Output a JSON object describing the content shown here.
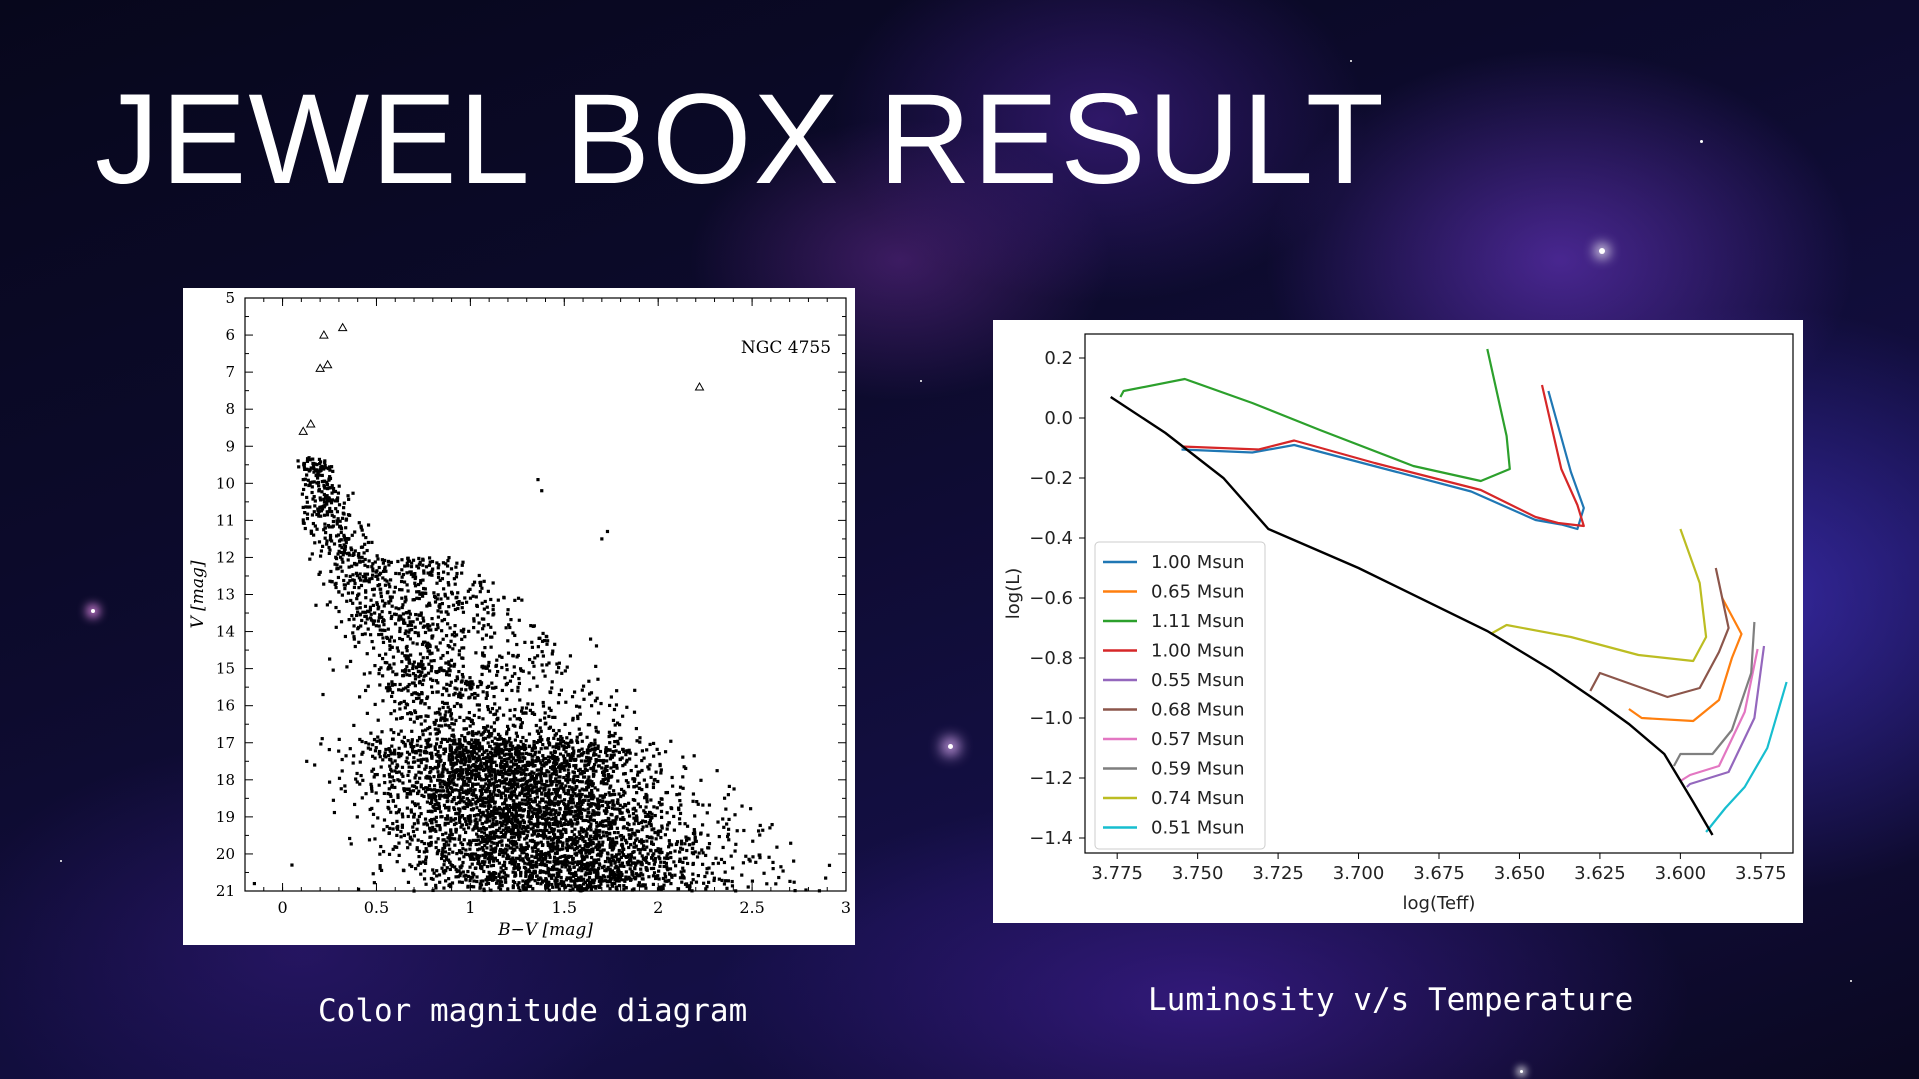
{
  "slide": {
    "title": "JEWEL BOX RESULT",
    "caption_left": "Color magnitude diagram",
    "caption_right": "Luminosity v/s Temperature"
  },
  "colors": {
    "background": "#0d0b2e",
    "title": "#ffffff"
  },
  "chart_data": [
    {
      "type": "scatter",
      "title": "NGC 4755",
      "xlabel": "B−V [mag]",
      "ylabel": "V [mag]",
      "xlim": [
        -0.2,
        3.0
      ],
      "ylim": [
        21,
        5
      ],
      "y_inverted": true,
      "xticks": [
        "0",
        "0.5",
        "1",
        "1.5",
        "2",
        "2.5",
        "3"
      ],
      "yticks": [
        "5",
        "6",
        "7",
        "8",
        "9",
        "10",
        "11",
        "12",
        "13",
        "14",
        "15",
        "16",
        "17",
        "18",
        "19",
        "20",
        "21"
      ],
      "triangles": [
        [
          0.22,
          6.0
        ],
        [
          0.32,
          5.8
        ],
        [
          0.2,
          6.9
        ],
        [
          0.24,
          6.8
        ],
        [
          0.15,
          8.4
        ],
        [
          0.11,
          8.6
        ],
        [
          2.22,
          7.4
        ]
      ],
      "dense_points_note": "",
      "grid": false
    },
    {
      "type": "line",
      "xlabel": "log(Teff)",
      "ylabel": "log(L)",
      "xlim": [
        3.785,
        3.565
      ],
      "ylim": [
        -1.45,
        0.28
      ],
      "xticks": [
        "3.775",
        "3.750",
        "3.725",
        "3.700",
        "3.675",
        "3.650",
        "3.625",
        "3.600",
        "3.575"
      ],
      "yticks": [
        "0.2",
        "0.0",
        "−0.2",
        "−0.4",
        "−0.6",
        "−0.8",
        "−1.0",
        "−1.2",
        "−1.4"
      ],
      "legend_position": "lower-left",
      "grid": false,
      "series": [
        {
          "name": "1.00 Msun",
          "color": "#1f77b4",
          "x": [
            3.755,
            3.733,
            3.72,
            3.697,
            3.665,
            3.645,
            3.637,
            3.632,
            3.63,
            3.634,
            3.641
          ],
          "y": [
            -0.105,
            -0.115,
            -0.09,
            -0.155,
            -0.245,
            -0.34,
            -0.355,
            -0.37,
            -0.3,
            -0.18,
            0.09
          ]
        },
        {
          "name": "0.65 Msun",
          "color": "#ff7f0e",
          "x": [
            3.616,
            3.612,
            3.596,
            3.588,
            3.584,
            3.581,
            3.587
          ],
          "y": [
            -0.97,
            -1.0,
            -1.01,
            -0.94,
            -0.8,
            -0.72,
            -0.6
          ]
        },
        {
          "name": "1.11 Msun",
          "color": "#2ca02c",
          "x": [
            3.774,
            3.773,
            3.754,
            3.733,
            3.712,
            3.683,
            3.662,
            3.653,
            3.654,
            3.66
          ],
          "y": [
            0.07,
            0.09,
            0.13,
            0.05,
            -0.04,
            -0.16,
            -0.21,
            -0.17,
            -0.06,
            0.23
          ]
        },
        {
          "name": "1.00 Msun",
          "color": "#d62728",
          "x": [
            3.755,
            3.731,
            3.72,
            3.695,
            3.662,
            3.645,
            3.638,
            3.63,
            3.632,
            3.637,
            3.643
          ],
          "y": [
            -0.095,
            -0.105,
            -0.075,
            -0.15,
            -0.24,
            -0.33,
            -0.35,
            -0.36,
            -0.29,
            -0.17,
            0.11
          ]
        },
        {
          "name": "0.55 Msun",
          "color": "#9467bd",
          "x": [
            3.598,
            3.597,
            3.585,
            3.577,
            3.574
          ],
          "y": [
            -1.23,
            -1.22,
            -1.18,
            -1.0,
            -0.76
          ]
        },
        {
          "name": "0.68 Msun",
          "color": "#8c564b",
          "x": [
            3.628,
            3.625,
            3.604,
            3.594,
            3.588,
            3.585,
            3.589
          ],
          "y": [
            -0.91,
            -0.85,
            -0.93,
            -0.9,
            -0.78,
            -0.7,
            -0.5
          ]
        },
        {
          "name": "0.57 Msun",
          "color": "#e377c2",
          "x": [
            3.6,
            3.597,
            3.588,
            3.58,
            3.576
          ],
          "y": [
            -1.21,
            -1.19,
            -1.16,
            -0.98,
            -0.77
          ]
        },
        {
          "name": "0.59 Msun",
          "color": "#7f7f7f",
          "x": [
            3.602,
            3.6,
            3.59,
            3.584,
            3.578,
            3.577
          ],
          "y": [
            -1.16,
            -1.12,
            -1.12,
            -1.04,
            -0.85,
            -0.68
          ]
        },
        {
          "name": "0.74 Msun",
          "color": "#bcbd22",
          "x": [
            3.659,
            3.654,
            3.634,
            3.613,
            3.596,
            3.592,
            3.594,
            3.6
          ],
          "y": [
            -0.72,
            -0.69,
            -0.73,
            -0.79,
            -0.81,
            -0.73,
            -0.55,
            -0.37
          ]
        },
        {
          "name": "0.51 Msun",
          "color": "#17becf",
          "x": [
            3.592,
            3.586,
            3.58,
            3.573,
            3.567
          ],
          "y": [
            -1.38,
            -1.3,
            -1.23,
            -1.1,
            -0.88
          ]
        }
      ],
      "reference_line": {
        "color": "#000000",
        "x": [
          3.777,
          3.76,
          3.742,
          3.728,
          3.7,
          3.66,
          3.64,
          3.625,
          3.616,
          3.605,
          3.596,
          3.59
        ],
        "y": [
          0.07,
          -0.05,
          -0.2,
          -0.37,
          -0.5,
          -0.71,
          -0.84,
          -0.95,
          -1.02,
          -1.12,
          -1.28,
          -1.39
        ]
      }
    }
  ]
}
